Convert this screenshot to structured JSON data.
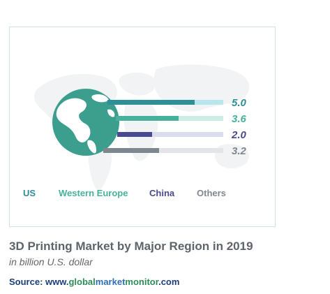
{
  "chart_data": {
    "type": "bar",
    "title": "3D Printing Market by Major Region in 2019",
    "subtitle": "in billion U.S. dollar",
    "categories": [
      "US",
      "Western Europe",
      "China",
      "Others"
    ],
    "values": [
      5.0,
      3.6,
      2.0,
      3.2
    ],
    "value_labels": [
      "5.0",
      "3.6",
      "2.0",
      "3.2"
    ],
    "colors": [
      "#2f8f98",
      "#46b29d",
      "#4a4a8e",
      "#7f878e"
    ],
    "track_colors": [
      "#b7e6ec",
      "#cdeee7",
      "#dcdcef",
      "#e3e5e8"
    ],
    "legend_position": "bottom",
    "grid": false
  },
  "source": {
    "prefix": "Source: www.",
    "part_global": "global",
    "part_market": "market",
    "part_monitor": "monitor",
    "suffix": ".com"
  },
  "icons": {
    "globe": "globe-icon",
    "world_map": "world-map-background"
  }
}
